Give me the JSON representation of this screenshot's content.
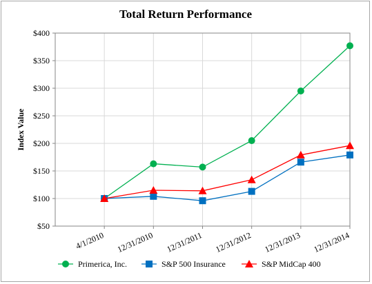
{
  "chart_data": {
    "type": "line",
    "title": "Total Return Performance",
    "ylabel": "Index Value",
    "xlabel": "",
    "categories": [
      "4/1/2010",
      "12/31/2010",
      "12/31/2011",
      "12/31/2012",
      "12/31/2013",
      "12/31/2014"
    ],
    "ylim": [
      50,
      400
    ],
    "yticks": [
      "$50",
      "$100",
      "$150",
      "$200",
      "$250",
      "$300",
      "$350",
      "$400"
    ],
    "grid": true,
    "legend_position": "bottom",
    "series": [
      {
        "name": "Primerica, Inc.",
        "values": [
          100,
          163,
          157,
          205,
          295,
          377
        ],
        "color": "#00b050",
        "marker": "circle"
      },
      {
        "name": "S&P 500 Insurance",
        "values": [
          100,
          104,
          96,
          113,
          166,
          179
        ],
        "color": "#0070c0",
        "marker": "square"
      },
      {
        "name": "S&P MidCap 400",
        "values": [
          100,
          115,
          114,
          134,
          179,
          196
        ],
        "color": "#ff0000",
        "marker": "triangle"
      }
    ]
  }
}
